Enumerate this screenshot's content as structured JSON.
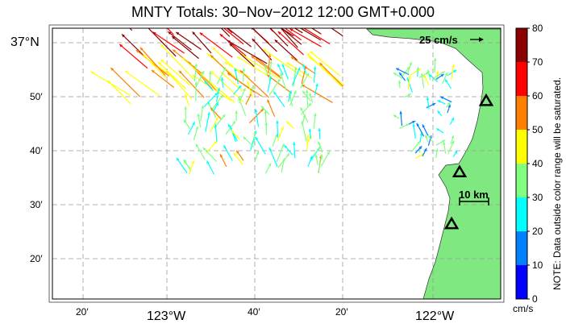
{
  "title": "MNTY Totals: 30−Nov−2012 12:00 GMT+0.000",
  "lat_labels": [
    "37°N",
    "50′",
    "40′",
    "30′",
    "20′"
  ],
  "lon_labels": [
    "20′",
    "123°W",
    "40′",
    "20′",
    "122°W"
  ],
  "scale_vector_label": "25 cm/s",
  "scale_distance_label": "10 km",
  "colorbar": {
    "ticks": [
      "80",
      "70",
      "60",
      "50",
      "40",
      "30",
      "20",
      "10",
      "0"
    ],
    "units": "cm/s",
    "colors": [
      "#8b0000",
      "#ff0000",
      "#ff8000",
      "#ffff00",
      "#80ff80",
      "#00ffff",
      "#0080ff",
      "#0000ff"
    ]
  },
  "note": "NOTE: Data outside color range will be saturated.",
  "land_color": "#80e880",
  "site_marker": "triangle-icon",
  "sites": [
    {
      "lat": 36.82,
      "lon": -121.8
    },
    {
      "lat": 36.6,
      "lon": -121.9
    },
    {
      "lat": 36.44,
      "lon": -121.93
    }
  ]
}
